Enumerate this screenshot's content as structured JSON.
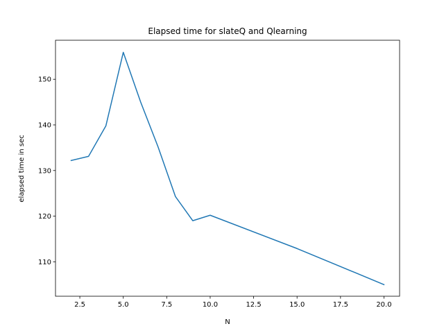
{
  "chart_data": {
    "type": "line",
    "title": "Elapsed time for slateQ and Qlearning",
    "xlabel": "N",
    "ylabel": "elapsed time in sec",
    "xlim": [
      1.1,
      20.9
    ],
    "ylim": [
      102.45,
      158.55
    ],
    "xticks": [
      2.5,
      5.0,
      7.5,
      10.0,
      12.5,
      15.0,
      17.5,
      20.0
    ],
    "xtick_labels": [
      "2.5",
      "5.0",
      "7.5",
      "10.0",
      "12.5",
      "15.0",
      "17.5",
      "20.0"
    ],
    "yticks": [
      110,
      120,
      130,
      140,
      150
    ],
    "ytick_labels": [
      "110",
      "120",
      "130",
      "140",
      "150"
    ],
    "grid": false,
    "series": [
      {
        "color": "#1f77b4",
        "x": [
          2,
          3,
          4,
          5,
          6,
          7,
          8,
          9,
          10,
          15,
          20
        ],
        "y": [
          132.2,
          133.1,
          139.8,
          155.9,
          145.0,
          135.2,
          124.3,
          119.0,
          120.2,
          112.9,
          105.0
        ]
      }
    ]
  }
}
